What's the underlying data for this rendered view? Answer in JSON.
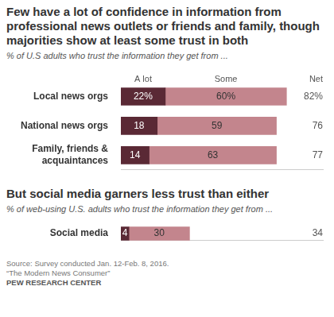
{
  "chart_data": [
    {
      "type": "bar",
      "orientation": "horizontal",
      "stacked": true,
      "title": "Few have a lot of confidence in information from professional news outlets or friends and family, though majorities show at least some trust in both",
      "subtitle": "% of U.S adults who trust the information they get from ...",
      "categories": [
        "Local news orgs",
        "National news orgs",
        "Family, friends & acquaintances"
      ],
      "series": [
        {
          "name": "A lot",
          "color": "#5a2935",
          "values": [
            22,
            18,
            14
          ],
          "value_labels": [
            "22%",
            "18",
            "14"
          ]
        },
        {
          "name": "Some",
          "color": "#c3858d",
          "values": [
            60,
            59,
            63
          ],
          "value_labels": [
            "60%",
            "59",
            "63"
          ]
        }
      ],
      "net": {
        "label": "Net",
        "values": [
          82,
          76,
          77
        ],
        "value_labels": [
          "82%",
          "76",
          "77"
        ]
      },
      "xlim": [
        0,
        100
      ],
      "grid": false,
      "legend": "top",
      "data_labels": true,
      "tick_labels": "y"
    },
    {
      "type": "bar",
      "orientation": "horizontal",
      "stacked": true,
      "title": "But social media garners less trust than either",
      "subtitle": "% of web-using U.S. adults who trust the information they get from ...",
      "categories": [
        "Social media"
      ],
      "series": [
        {
          "color": "#5a2935",
          "values": [
            4
          ]
        },
        {
          "color": "#c3858d",
          "values": [
            30
          ]
        }
      ],
      "net": {
        "values": [
          34
        ]
      },
      "xlim": [
        0,
        100
      ],
      "grid": false,
      "data_labels": true,
      "tick_labels": "y"
    }
  ],
  "source": [
    "Source: Survey conducted Jan. 12-Feb. 8, 2016.",
    "“The Modern News Consumer”"
  ],
  "credit": "PEW RESEARCH CENTER"
}
